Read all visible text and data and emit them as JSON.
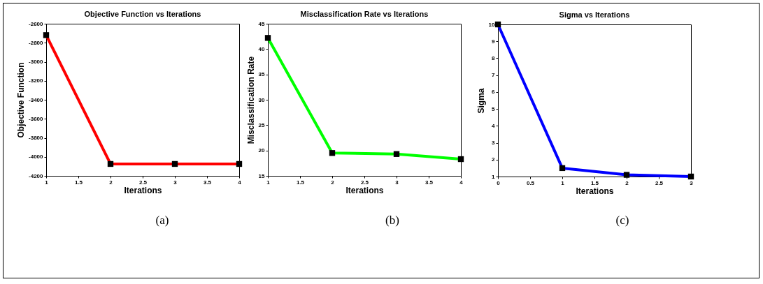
{
  "chart_data": [
    {
      "type": "line",
      "title": "Objective Function vs Iterations",
      "xlabel": "Iterations",
      "ylabel": "Objective Function",
      "annotations": [
        "(a)"
      ],
      "x": [
        1,
        2,
        3,
        4
      ],
      "series": [
        {
          "color": "#ff0000",
          "values": [
            -2720,
            -4075,
            -4075,
            -4075
          ]
        }
      ],
      "xlim": [
        1,
        4
      ],
      "xticks": [
        1,
        1.5,
        2,
        2.5,
        3,
        3.5,
        4
      ],
      "ylim": [
        -4200,
        -2600
      ],
      "yticks": [
        -4200,
        -4000,
        -3800,
        -3600,
        -3400,
        -3200,
        -3000,
        -2800,
        -2600
      ],
      "grid": false,
      "marker": "square",
      "line_style": "solid"
    },
    {
      "type": "line",
      "title": "Misclassification Rate vs Iterations",
      "xlabel": "Iterations",
      "ylabel": "Misclassification Rate",
      "annotations": [
        "(b)"
      ],
      "x": [
        1,
        2,
        3,
        4
      ],
      "series": [
        {
          "color": "#00ff00",
          "values": [
            42.2,
            19.5,
            19.3,
            18.3
          ]
        }
      ],
      "xlim": [
        1,
        4
      ],
      "xticks": [
        1,
        1.5,
        2,
        2.5,
        3,
        3.5,
        4
      ],
      "ylim": [
        15,
        45
      ],
      "yticks": [
        15,
        20,
        25,
        30,
        35,
        40,
        45
      ],
      "grid": false,
      "marker": "square",
      "line_style": "solid"
    },
    {
      "type": "line",
      "title": "Sigma vs Iterations",
      "xlabel": "Iterations",
      "ylabel": "Sigma",
      "annotations": [
        "(c)"
      ],
      "x": [
        0,
        1,
        2,
        3
      ],
      "series": [
        {
          "color": "#0000ff",
          "values": [
            10,
            1.5,
            1.1,
            1.0
          ]
        }
      ],
      "xlim": [
        0,
        3
      ],
      "xticks": [
        0,
        0.5,
        1,
        1.5,
        2,
        2.5,
        3
      ],
      "ylim": [
        1,
        10
      ],
      "yticks": [
        1,
        2,
        3,
        4,
        5,
        6,
        7,
        8,
        9,
        10
      ],
      "grid": false,
      "marker": "square",
      "line_style": "solid"
    }
  ]
}
